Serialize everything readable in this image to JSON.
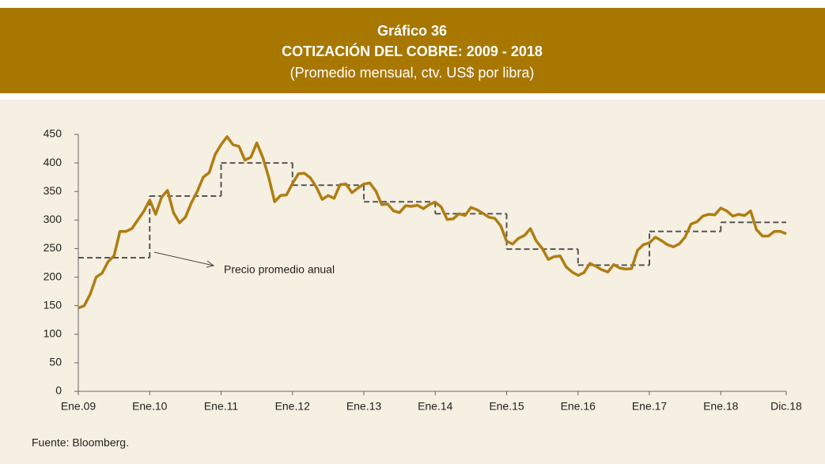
{
  "chart_data": {
    "type": "line",
    "title": "Gráfico 36",
    "subtitle": "COTIZACIÓN DEL COBRE: 2009 - 2018",
    "unit_note": "(Promedio mensual, ctv. US$ por libra)",
    "annotation": "Precio promedio anual",
    "source": "Fuente: Bloomberg.",
    "categories": [
      "Ene.09",
      null,
      null,
      null,
      null,
      null,
      null,
      null,
      null,
      null,
      null,
      null,
      "Ene.10",
      null,
      null,
      null,
      null,
      null,
      null,
      null,
      null,
      null,
      null,
      null,
      "Ene.11",
      null,
      null,
      null,
      null,
      null,
      null,
      null,
      null,
      null,
      null,
      null,
      "Ene.12",
      null,
      null,
      null,
      null,
      null,
      null,
      null,
      null,
      null,
      null,
      null,
      "Ene.13",
      null,
      null,
      null,
      null,
      null,
      null,
      null,
      null,
      null,
      null,
      null,
      "Ene.14",
      null,
      null,
      null,
      null,
      null,
      null,
      null,
      null,
      null,
      null,
      null,
      "Ene.15",
      null,
      null,
      null,
      null,
      null,
      null,
      null,
      null,
      null,
      null,
      null,
      "Ene.16",
      null,
      null,
      null,
      null,
      null,
      null,
      null,
      null,
      null,
      null,
      null,
      "Ene.17",
      null,
      null,
      null,
      null,
      null,
      null,
      null,
      null,
      null,
      null,
      null,
      "Ene.18",
      null,
      null,
      null,
      null,
      null,
      null,
      null,
      null,
      null,
      null,
      "Dic.18"
    ],
    "series": [
      {
        "color": "#b07d12",
        "values": [
          146,
          150,
          170,
          200,
          207,
          227,
          237,
          280,
          280,
          285,
          300,
          315,
          335,
          310,
          340,
          352,
          313,
          295,
          305,
          330,
          350,
          375,
          383,
          415,
          432,
          446,
          432,
          429,
          405,
          410,
          435,
          410,
          375,
          332,
          343,
          344,
          364,
          381,
          382,
          374,
          358,
          336,
          343,
          338,
          362,
          363,
          348,
          356,
          363,
          365,
          351,
          327,
          328,
          316,
          313,
          325,
          324,
          326,
          320,
          327,
          331,
          323,
          301,
          302,
          311,
          308,
          322,
          318,
          312,
          305,
          303,
          290,
          263,
          258,
          268,
          273,
          285,
          263,
          250,
          231,
          236,
          237,
          218,
          209,
          203,
          208,
          224,
          219,
          213,
          209,
          222,
          216,
          214,
          215,
          247,
          257,
          260,
          270,
          264,
          257,
          253,
          258,
          270,
          293,
          297,
          307,
          310,
          309,
          321,
          316,
          307,
          310,
          308,
          316,
          283,
          272,
          272,
          280,
          280,
          276
        ]
      }
    ],
    "annual": {
      "color": "#555555",
      "values": [
        234,
        342,
        400,
        361,
        332,
        311,
        249,
        221,
        280,
        296
      ]
    },
    "ylim": [
      0,
      450
    ],
    "yticks": [
      0,
      50,
      100,
      150,
      200,
      250,
      300,
      350,
      400,
      450
    ]
  }
}
